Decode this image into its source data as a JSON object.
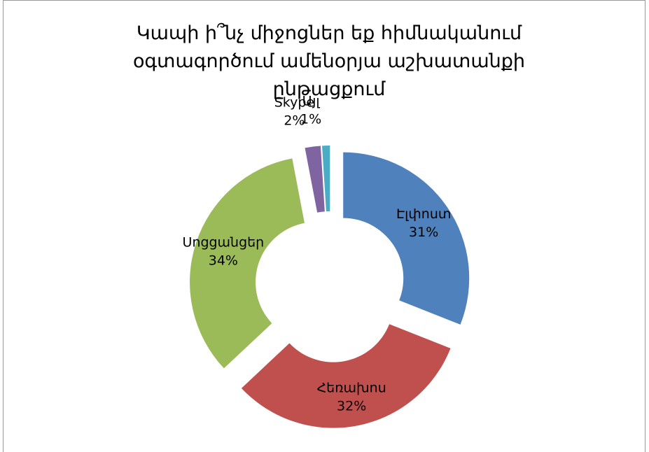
{
  "chart_data": {
    "type": "donut",
    "title": "Կապի ի՞նչ միջոցներ եք հիմնականում օգտագործում ամենօրյա աշխատանքի ընթացքում",
    "categories": [
      "Էլփոստ",
      "Հեռախոս",
      "Սոցցանցեր",
      "Skype",
      "Այլ"
    ],
    "values": [
      31,
      32,
      34,
      2,
      1
    ],
    "value_labels": [
      "31%",
      "32%",
      "34%",
      "2%",
      "1%"
    ],
    "colors": [
      "#4f81bd",
      "#c0504d",
      "#9bbb59",
      "#8064a2",
      "#4bacc6"
    ],
    "exploded": true
  }
}
